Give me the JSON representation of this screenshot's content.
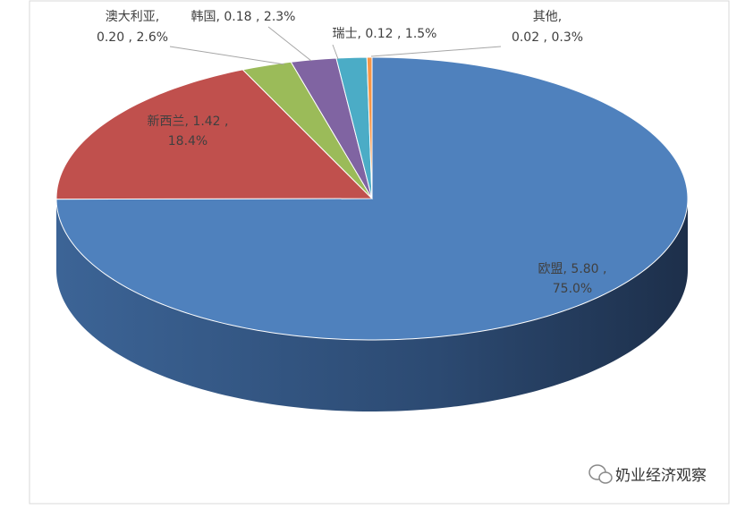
{
  "chart_data": {
    "type": "pie3d",
    "categories": [
      "欧盟",
      "新西兰",
      "澳大利亚",
      "韩国",
      "瑞士",
      "其他"
    ],
    "values": [
      5.8,
      1.42,
      0.2,
      0.18,
      0.12,
      0.02
    ],
    "value_labels": [
      "5.80",
      "1.42",
      "0.20",
      "0.18",
      "0.12",
      "0.02"
    ],
    "percentages": [
      75.0,
      18.4,
      2.6,
      2.3,
      1.5,
      0.3
    ],
    "percentage_labels": [
      "75.0%",
      "18.4%",
      "2.6%",
      "2.3%",
      "1.5%",
      "0.3%"
    ],
    "label_separators": [
      ", ",
      " , "
    ],
    "colors": [
      "#4f81bd",
      "#c0504d",
      "#9bbb59",
      "#8064a2",
      "#4bacc6",
      "#f79646"
    ]
  },
  "watermark": "奶业经济观察"
}
